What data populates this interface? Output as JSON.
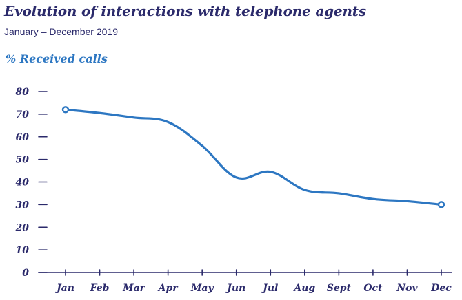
{
  "chart_data": {
    "type": "line",
    "title": "Evolution of interactions with telephone agents",
    "subtitle": "January – December 2019",
    "xlabel": "",
    "ylabel": "% Received calls",
    "categories": [
      "Jan",
      "Feb",
      "Mar",
      "Apr",
      "May",
      "Jun",
      "Jul",
      "Aug",
      "Sept",
      "Oct",
      "Nov",
      "Dec"
    ],
    "series": [
      {
        "values": [
          72,
          70.5,
          68.5,
          66.5,
          56,
          42,
          44.5,
          36.5,
          35,
          32.5,
          31.5,
          30
        ]
      }
    ],
    "ylim": [
      0,
      80
    ],
    "yticks": [
      0,
      10,
      20,
      30,
      40,
      50,
      60,
      70,
      80
    ],
    "grid": false,
    "endpoint_markers": true,
    "colors": {
      "line": "#2d77c2",
      "text": "#2b2a6b",
      "accent": "#2d77c2"
    }
  }
}
